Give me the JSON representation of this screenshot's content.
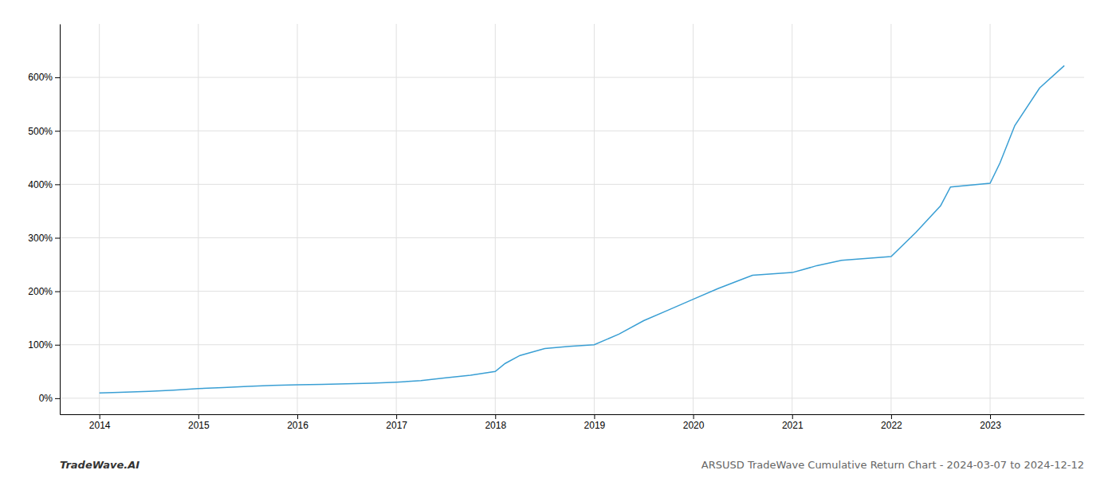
{
  "chart_data": {
    "type": "line",
    "title": "ARSUSD TradeWave Cumulative Return Chart - 2024-03-07 to 2024-12-12",
    "annotations": [
      "TradeWave.AI"
    ],
    "color": "#3a9fd4",
    "grid": true,
    "x": [
      2014.0,
      2014.2,
      2014.5,
      2014.75,
      2015.0,
      2015.25,
      2015.5,
      2015.75,
      2016.0,
      2016.25,
      2016.5,
      2016.75,
      2017.0,
      2017.25,
      2017.5,
      2017.75,
      2018.0,
      2018.1,
      2018.25,
      2018.5,
      2018.75,
      2019.0,
      2019.25,
      2019.5,
      2019.75,
      2020.0,
      2020.25,
      2020.5,
      2020.6,
      2021.0,
      2021.1,
      2021.25,
      2021.5,
      2022.0,
      2022.25,
      2022.5,
      2022.6,
      2023.0,
      2023.1,
      2023.25,
      2023.5,
      2023.75
    ],
    "values": [
      10,
      11,
      13,
      15,
      18,
      20,
      22,
      24,
      25,
      26,
      27,
      28,
      30,
      33,
      38,
      43,
      50,
      65,
      80,
      93,
      97,
      100,
      120,
      145,
      165,
      185,
      205,
      223,
      230,
      235,
      240,
      248,
      258,
      265,
      310,
      360,
      395,
      402,
      440,
      510,
      580,
      622
    ],
    "xlim": [
      2013.6,
      2023.95
    ],
    "ylim": [
      -30,
      700
    ],
    "xticks": [
      2014,
      2015,
      2016,
      2017,
      2018,
      2019,
      2020,
      2021,
      2022,
      2023
    ],
    "yticks": [
      {
        "value": 0,
        "label": "0%"
      },
      {
        "value": 100,
        "label": "100%"
      },
      {
        "value": 200,
        "label": "200%"
      },
      {
        "value": 300,
        "label": "300%"
      },
      {
        "value": 400,
        "label": "400%"
      },
      {
        "value": 500,
        "label": "500%"
      },
      {
        "value": 600,
        "label": "600%"
      }
    ]
  }
}
